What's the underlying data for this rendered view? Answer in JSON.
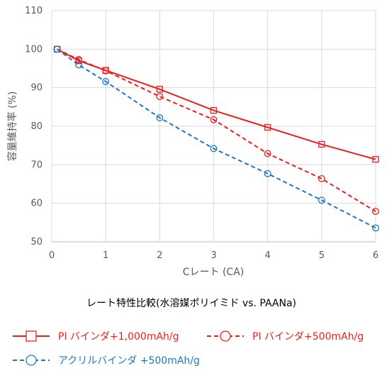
{
  "chart_data": {
    "type": "line",
    "title": "レート特性比較(水溶媒ポリイミド vs. PAANa)",
    "xlabel": "Cレート (CA)",
    "ylabel": "容量維持率 (%)",
    "xlim": [
      0,
      6
    ],
    "ylim": [
      50,
      110
    ],
    "x_ticks": [
      "0",
      "1",
      "2",
      "3",
      "4",
      "5",
      "6"
    ],
    "y_ticks": [
      "50",
      "60",
      "70",
      "80",
      "90",
      "100",
      "110"
    ],
    "grid": true,
    "legend_position": "bottom",
    "series": [
      {
        "name": "PI バインダ+1,000mAh/g",
        "color": "#ee1c1c",
        "line_style": "solid",
        "marker": "square",
        "x": [
          0.1,
          0.5,
          1,
          2,
          3,
          4,
          5,
          6
        ],
        "y": [
          100,
          97,
          94.5,
          89.6,
          84.1,
          79.7,
          75.3,
          71.4
        ]
      },
      {
        "name": "PI バインダ+500mAh/g",
        "color": "#ee1c1c",
        "line_style": "dashed",
        "marker": "circle",
        "x": [
          0.1,
          0.5,
          1,
          2,
          3,
          4,
          5,
          6
        ],
        "y": [
          100,
          97.3,
          94.4,
          87.7,
          81.7,
          72.9,
          66.4,
          57.9
        ]
      },
      {
        "name": "アクリルバインダ +500mAh/g",
        "color": "#1f77c0",
        "line_style": "dashed",
        "marker": "circle",
        "x": [
          0.1,
          0.5,
          1,
          2,
          3,
          4,
          5,
          6
        ],
        "y": [
          100,
          95.9,
          91.6,
          82.2,
          74.2,
          67.7,
          60.8,
          53.6
        ]
      }
    ]
  }
}
